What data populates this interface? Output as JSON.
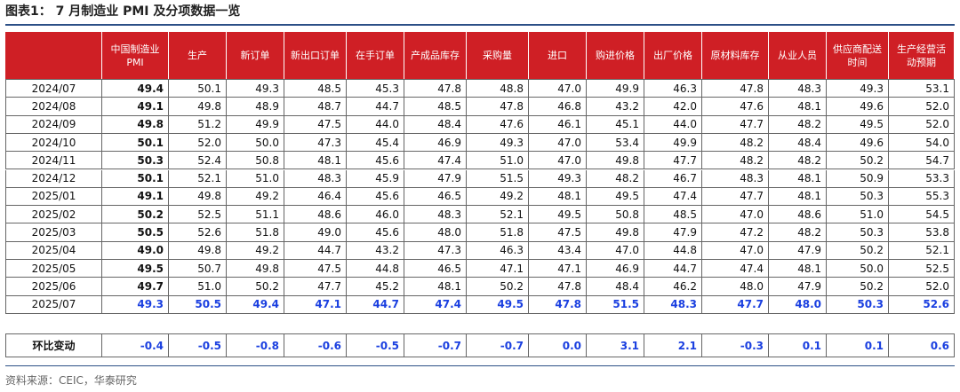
{
  "title": "图表1： 7 月制造业 PMI 及分项数据一览",
  "table": {
    "headers": [
      "中国制造业PMI",
      "生产",
      "新订单",
      "新出口订单",
      "在手订单",
      "产成品库存",
      "采购量",
      "进口",
      "购进价格",
      "出厂价格",
      "原材料库存",
      "从业人员",
      "供应商配送时间",
      "生产经营活动预期"
    ],
    "rows": [
      [
        "2024/07",
        "49.4",
        "50.1",
        "49.3",
        "48.5",
        "45.3",
        "47.8",
        "48.8",
        "47.0",
        "49.9",
        "46.3",
        "47.8",
        "48.3",
        "49.3",
        "53.1"
      ],
      [
        "2024/08",
        "49.1",
        "49.8",
        "48.9",
        "48.7",
        "44.7",
        "48.5",
        "47.8",
        "46.8",
        "43.2",
        "42.0",
        "47.6",
        "48.1",
        "49.6",
        "52.0"
      ],
      [
        "2024/09",
        "49.8",
        "51.2",
        "49.9",
        "47.5",
        "44.0",
        "48.4",
        "47.6",
        "46.1",
        "45.1",
        "44.0",
        "47.7",
        "48.2",
        "49.5",
        "52.0"
      ],
      [
        "2024/10",
        "50.1",
        "52.0",
        "50.0",
        "47.3",
        "45.4",
        "46.9",
        "49.3",
        "47.0",
        "53.4",
        "49.9",
        "48.2",
        "48.4",
        "49.6",
        "54.0"
      ],
      [
        "2024/11",
        "50.3",
        "52.4",
        "50.8",
        "48.1",
        "45.6",
        "47.4",
        "51.0",
        "47.0",
        "49.8",
        "47.7",
        "48.2",
        "48.2",
        "50.2",
        "54.7"
      ],
      [
        "2024/12",
        "50.1",
        "52.1",
        "51.0",
        "48.3",
        "45.9",
        "47.9",
        "51.5",
        "49.3",
        "48.2",
        "46.7",
        "48.3",
        "48.1",
        "50.9",
        "53.3"
      ],
      [
        "2025/01",
        "49.1",
        "49.8",
        "49.2",
        "46.4",
        "45.6",
        "46.5",
        "49.2",
        "48.1",
        "49.5",
        "47.4",
        "47.7",
        "48.1",
        "50.3",
        "55.3"
      ],
      [
        "2025/02",
        "50.2",
        "52.5",
        "51.1",
        "48.6",
        "46.0",
        "48.3",
        "52.1",
        "49.5",
        "50.8",
        "48.5",
        "47.0",
        "48.6",
        "51.0",
        "54.5"
      ],
      [
        "2025/03",
        "50.5",
        "52.6",
        "51.8",
        "49.0",
        "45.6",
        "48.0",
        "51.8",
        "47.5",
        "49.8",
        "47.9",
        "47.2",
        "48.2",
        "50.3",
        "53.8"
      ],
      [
        "2025/04",
        "49.0",
        "49.8",
        "49.2",
        "44.7",
        "43.2",
        "47.3",
        "46.3",
        "43.4",
        "47.0",
        "44.8",
        "47.0",
        "47.9",
        "50.2",
        "52.1"
      ],
      [
        "2025/05",
        "49.5",
        "50.7",
        "49.8",
        "47.5",
        "44.8",
        "46.5",
        "47.1",
        "47.1",
        "46.9",
        "44.7",
        "47.4",
        "48.1",
        "50.0",
        "52.5"
      ],
      [
        "2025/06",
        "49.7",
        "51.0",
        "50.2",
        "47.7",
        "45.2",
        "48.1",
        "50.2",
        "47.8",
        "48.4",
        "46.2",
        "48.0",
        "47.9",
        "50.2",
        "52.0"
      ],
      [
        "2025/07",
        "49.3",
        "50.5",
        "49.4",
        "47.1",
        "44.7",
        "47.4",
        "49.5",
        "47.8",
        "51.5",
        "48.3",
        "47.7",
        "48.0",
        "50.3",
        "52.6"
      ]
    ],
    "change_row": [
      "环比变动",
      "-0.4",
      "-0.5",
      "-0.8",
      "-0.6",
      "-0.5",
      "-0.7",
      "-0.7",
      "0.0",
      "3.1",
      "2.1",
      "-0.3",
      "0.1",
      "0.1",
      "0.6"
    ]
  },
  "source": "资料来源：CEIC，华泰研究"
}
